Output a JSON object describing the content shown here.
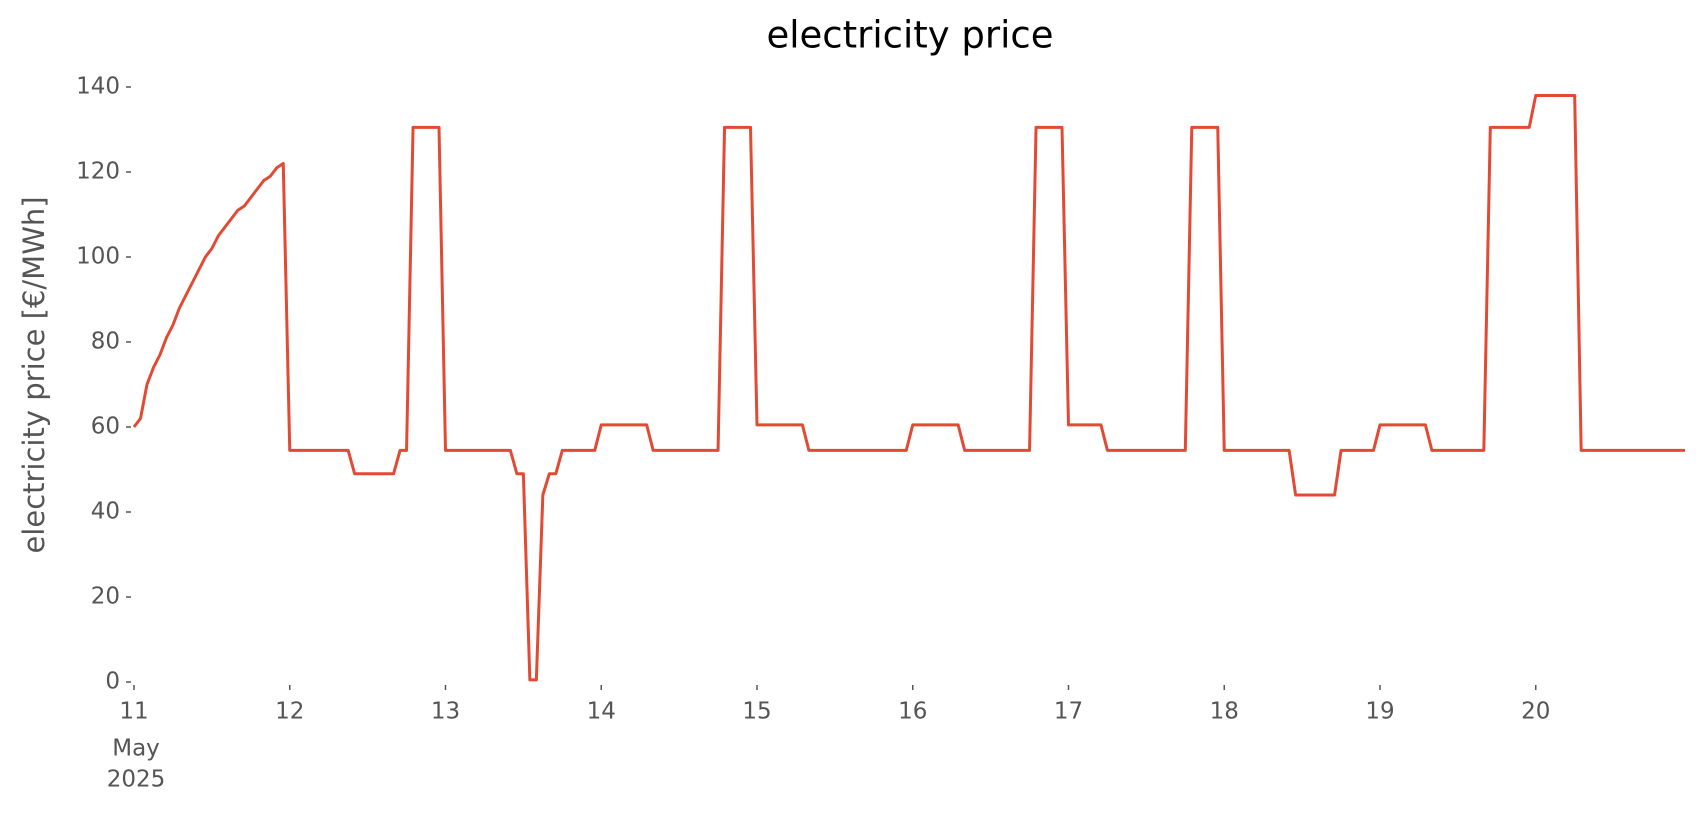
{
  "chart_data": {
    "type": "line",
    "title": "electricity price",
    "ylabel": "electricity price [€/MWh]",
    "x_date_label": [
      "May",
      "2025"
    ],
    "xlim": [
      0,
      239
    ],
    "xticks": [
      {
        "value": 0,
        "label": "11"
      },
      {
        "value": 24,
        "label": "12"
      },
      {
        "value": 48,
        "label": "13"
      },
      {
        "value": 72,
        "label": "14"
      },
      {
        "value": 96,
        "label": "15"
      },
      {
        "value": 120,
        "label": "16"
      },
      {
        "value": 144,
        "label": "17"
      },
      {
        "value": 168,
        "label": "18"
      },
      {
        "value": 192,
        "label": "19"
      },
      {
        "value": 216,
        "label": "20"
      }
    ],
    "ylim": [
      0,
      140
    ],
    "yticks": [
      0,
      20,
      40,
      60,
      80,
      100,
      120,
      140
    ],
    "grid": false,
    "series": [
      {
        "color": "#e24a33",
        "x": [
          0,
          1,
          2,
          3,
          4,
          5,
          6,
          7,
          8,
          9,
          10,
          11,
          12,
          13,
          14,
          15,
          16,
          17,
          18,
          19,
          20,
          21,
          22,
          23,
          24,
          33,
          34,
          40,
          41,
          42,
          43,
          47,
          48,
          58,
          59,
          60,
          61,
          62,
          63,
          64,
          65,
          66,
          71,
          72,
          79,
          80,
          90,
          91,
          95,
          96,
          103,
          104,
          119,
          120,
          127,
          128,
          138,
          139,
          143,
          144,
          149,
          150,
          162,
          163,
          167,
          168,
          178,
          179,
          185,
          186,
          191,
          192,
          199,
          200,
          208,
          209,
          215,
          216,
          222,
          223,
          239
        ],
        "values": [
          60,
          62,
          70,
          74,
          77,
          81,
          84,
          88,
          91,
          94,
          97,
          100,
          102,
          105,
          107,
          109,
          111,
          112,
          114,
          116,
          118,
          119,
          121,
          122,
          54.5,
          54.5,
          49,
          49,
          54.5,
          54.5,
          130.5,
          130.5,
          54.5,
          54.5,
          49,
          49,
          0.5,
          0.5,
          44,
          49,
          49,
          54.5,
          54.5,
          60.5,
          60.5,
          54.5,
          54.5,
          130.5,
          130.5,
          60.5,
          60.5,
          54.5,
          54.5,
          60.5,
          60.5,
          54.5,
          54.5,
          130.5,
          130.5,
          60.5,
          60.5,
          54.5,
          54.5,
          130.5,
          130.5,
          54.5,
          54.5,
          44,
          44,
          54.5,
          54.5,
          60.5,
          60.5,
          54.5,
          54.5,
          130.5,
          130.5,
          138,
          138,
          54.5,
          54.5
        ]
      }
    ]
  }
}
